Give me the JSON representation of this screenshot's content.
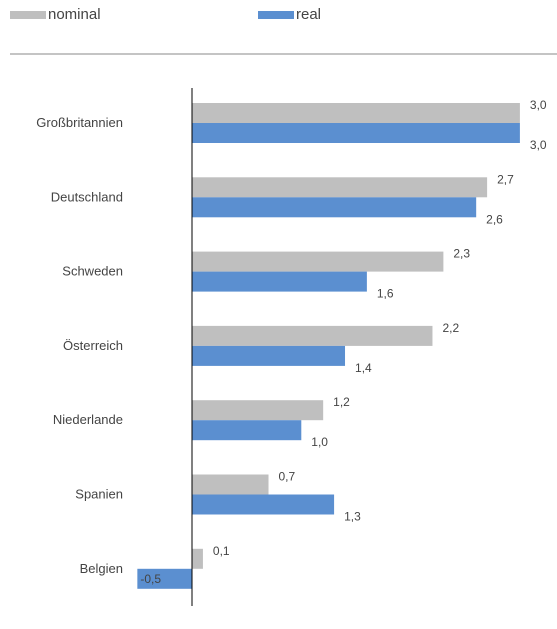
{
  "chart_data": {
    "type": "bar",
    "orientation": "horizontal",
    "categories": [
      "Großbritannien",
      "Deutschland",
      "Schweden",
      "Österreich",
      "Niederlande",
      "Spanien",
      "Belgien"
    ],
    "series": [
      {
        "name": "nominal",
        "color": "#bfbfbf",
        "values": [
          3.0,
          2.7,
          2.3,
          2.2,
          1.2,
          0.7,
          0.1
        ],
        "labels": [
          "3,0",
          "2,7",
          "2,3",
          "2,2",
          "1,2",
          "0,7",
          "0,1"
        ]
      },
      {
        "name": "real",
        "color": "#5b8fd0",
        "values": [
          3.0,
          2.6,
          1.6,
          1.4,
          1.0,
          1.3,
          -0.5
        ],
        "labels": [
          "3,0",
          "2,6",
          "1,6",
          "1,4",
          "1,0",
          "1,3",
          "-0,5"
        ]
      }
    ],
    "legend_position": "top-left",
    "grid": false
  }
}
